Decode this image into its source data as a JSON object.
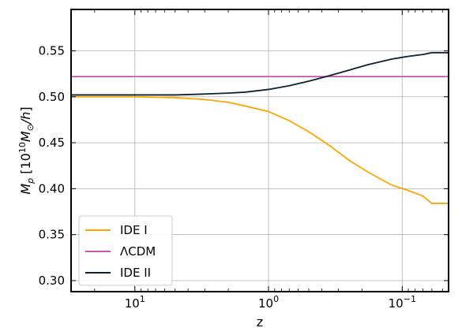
{
  "chart_data": {
    "type": "line",
    "xlabel": "z",
    "ylabel": "M_p [10^{10} M_⊙/h]",
    "x_scale": "log",
    "x_reversed": true,
    "xlim": [
      30,
      0.045
    ],
    "ylim": [
      0.288,
      0.595
    ],
    "grid": true,
    "legend_position": "lower-left",
    "x_ticks": [
      {
        "value": 10,
        "base": "10",
        "exp": "1"
      },
      {
        "value": 1,
        "base": "10",
        "exp": "0"
      },
      {
        "value": 0.1,
        "base": "10",
        "exp": "−1"
      }
    ],
    "y_ticks": [
      0.3,
      0.35,
      0.4,
      0.45,
      0.5,
      0.55
    ],
    "y_tick_labels": [
      "0.30",
      "0.35",
      "0.40",
      "0.45",
      "0.50",
      "0.55"
    ],
    "series": [
      {
        "name": "IDE I",
        "color": "#ffa500",
        "x": [
          30,
          20,
          10,
          5,
          3,
          2,
          1.5,
          1,
          0.7,
          0.5,
          0.35,
          0.25,
          0.18,
          0.12,
          0.09,
          0.07,
          0.06,
          0.045
        ],
        "y": [
          0.5,
          0.5,
          0.5,
          0.499,
          0.497,
          0.494,
          0.49,
          0.484,
          0.474,
          0.462,
          0.447,
          0.431,
          0.418,
          0.404,
          0.398,
          0.392,
          0.384,
          0.384
        ]
      },
      {
        "name": "ΛCDM",
        "color": "#cc55aa",
        "x": [
          30,
          0.045
        ],
        "y": [
          0.522,
          0.522
        ]
      },
      {
        "name": "IDE II",
        "color": "#0d2034",
        "x": [
          30,
          20,
          10,
          5,
          3,
          2,
          1.5,
          1,
          0.7,
          0.5,
          0.35,
          0.25,
          0.18,
          0.12,
          0.09,
          0.07,
          0.06,
          0.045
        ],
        "y": [
          0.502,
          0.502,
          0.502,
          0.502,
          0.503,
          0.504,
          0.505,
          0.508,
          0.512,
          0.517,
          0.523,
          0.529,
          0.535,
          0.541,
          0.544,
          0.546,
          0.548,
          0.548
        ]
      }
    ]
  }
}
